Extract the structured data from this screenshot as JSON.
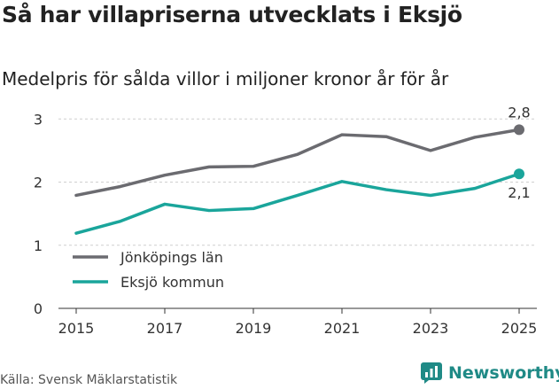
{
  "header": {
    "title": "Så har villapriserna utvecklats i Eksjö",
    "subtitle": "Medelpris för sålda villor i miljoner kronor år för år"
  },
  "footer": {
    "source": "Källa: Svensk Mäklarstatistik",
    "brand": "Newsworthy"
  },
  "chart_data": {
    "type": "line",
    "title": "Så har villapriserna utvecklats i Eksjö",
    "subtitle": "Medelpris för sålda villor i miljoner kronor år för år",
    "xlabel": "",
    "ylabel": "",
    "x": [
      2015,
      2016,
      2017,
      2018,
      2019,
      2020,
      2021,
      2022,
      2023,
      2024,
      2025
    ],
    "x_ticks": [
      "2015",
      "2017",
      "2019",
      "2021",
      "2023",
      "2025"
    ],
    "y_ticks": [
      "0",
      "1",
      "2",
      "3"
    ],
    "ylim": [
      0,
      3.2
    ],
    "grid": true,
    "legend_position": "lower-left",
    "series": [
      {
        "name": "Jönköpings län",
        "color": "#6b6b70",
        "values": [
          1.79,
          1.93,
          2.11,
          2.24,
          2.25,
          2.44,
          2.75,
          2.72,
          2.5,
          2.71,
          2.83
        ],
        "end_label": "2,8",
        "end_label_position": "above"
      },
      {
        "name": "Eksjö kommun",
        "color": "#1aa59b",
        "values": [
          1.19,
          1.38,
          1.65,
          1.55,
          1.58,
          1.79,
          2.01,
          1.88,
          1.79,
          1.9,
          2.13
        ],
        "end_label": "2,1",
        "end_label_position": "below"
      }
    ]
  }
}
